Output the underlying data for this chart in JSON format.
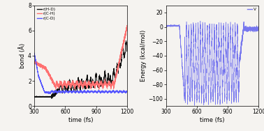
{
  "xlim": [
    300,
    1200
  ],
  "left_ylim": [
    0,
    8
  ],
  "right_ylim": [
    -110,
    30
  ],
  "left_yticks": [
    0,
    2,
    4,
    6,
    8
  ],
  "right_yticks": [
    -100,
    -80,
    -60,
    -40,
    -20,
    0,
    20
  ],
  "xlabel": "time (fs)",
  "left_ylabel": "bond (Å)",
  "right_ylabel": "Energy (kcal/mol)",
  "left_legend": [
    "r(H-D)",
    "r(C-H)",
    "r(C-D)"
  ],
  "right_legend": [
    "V"
  ],
  "color_HD": "#111111",
  "color_CH": "#ff7070",
  "color_CD": "#5555ff",
  "color_V": "#7777ee",
  "bg_color": "#f5f3f0",
  "seed": 42,
  "n_points": 9000
}
